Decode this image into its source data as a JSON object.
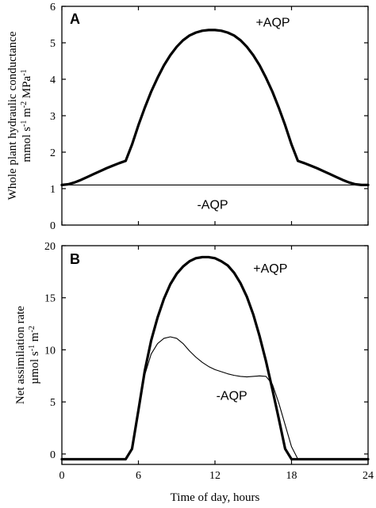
{
  "chart_data": [
    {
      "type": "line",
      "panel_label": "A",
      "ylabel_line1": "Whole plant hydraulic conductance",
      "ylabel_line2": "mmol s",
      "ylabel_line2_sup1": "-1",
      "ylabel_line2_mid": " m",
      "ylabel_line2_sup2": "-2",
      "ylabel_line2_mid2": " MPa",
      "ylabel_line2_sup3": "-1",
      "xlim": [
        0,
        24
      ],
      "ylim": [
        0,
        6
      ],
      "xticks": [
        0,
        6,
        12,
        18,
        24
      ],
      "yticks": [
        0,
        1,
        2,
        3,
        4,
        5,
        6
      ],
      "series": [
        {
          "name": "+AQP",
          "style": "thick",
          "x": [
            0,
            0.5,
            1,
            1.5,
            2,
            2.5,
            3,
            3.5,
            4,
            4.5,
            5,
            5.5,
            6,
            6.5,
            7,
            7.5,
            8,
            8.5,
            9,
            9.5,
            10,
            10.5,
            11,
            11.5,
            12,
            12.5,
            13,
            13.5,
            14,
            14.5,
            15,
            15.5,
            16,
            16.5,
            17,
            17.5,
            18,
            18.5,
            19,
            19.5,
            20,
            20.5,
            21,
            21.5,
            22,
            22.5,
            23,
            23.5,
            24
          ],
          "y": [
            1.1,
            1.12,
            1.17,
            1.24,
            1.32,
            1.4,
            1.48,
            1.56,
            1.63,
            1.7,
            1.76,
            2.21,
            2.74,
            3.22,
            3.66,
            4.04,
            4.38,
            4.66,
            4.89,
            5.07,
            5.2,
            5.28,
            5.33,
            5.35,
            5.35,
            5.33,
            5.28,
            5.2,
            5.07,
            4.89,
            4.66,
            4.38,
            4.04,
            3.66,
            3.22,
            2.74,
            2.21,
            1.76,
            1.7,
            1.63,
            1.56,
            1.48,
            1.4,
            1.32,
            1.24,
            1.17,
            1.12,
            1.1,
            1.1
          ]
        },
        {
          "name": "-AQP",
          "style": "thin",
          "x": [
            0,
            24
          ],
          "y": [
            1.1,
            1.1
          ]
        }
      ],
      "annotations": [
        {
          "text": "+AQP",
          "x": 15.2,
          "y": 5.45
        },
        {
          "text": "-AQP",
          "x": 10.6,
          "y": 0.45
        }
      ]
    },
    {
      "type": "line",
      "panel_label": "B",
      "ylabel_line1": "Net assimilation rate",
      "ylabel_line2": "µmol s",
      "ylabel_line2_sup1": "-1",
      "ylabel_line2_mid": " m",
      "ylabel_line2_sup2": "-2",
      "xlabel": "Time of day, hours",
      "xlim": [
        0,
        24
      ],
      "ylim": [
        -1,
        20
      ],
      "xticks": [
        0,
        6,
        12,
        18,
        24
      ],
      "xtick_labels": [
        "0",
        "6",
        "12",
        "18",
        "24"
      ],
      "yticks": [
        0,
        5,
        10,
        15,
        20
      ],
      "series": [
        {
          "name": "+AQP",
          "style": "thick",
          "x": [
            0,
            5,
            5.5,
            6,
            6.5,
            7,
            7.5,
            8,
            8.5,
            9,
            9.5,
            10,
            10.5,
            11,
            11.5,
            12,
            12.5,
            13,
            13.5,
            14,
            14.5,
            15,
            15.5,
            16,
            16.5,
            17,
            17.5,
            18,
            18.5,
            19,
            24
          ],
          "y": [
            -0.5,
            -0.5,
            0.5,
            4.2,
            8.0,
            10.9,
            13.1,
            14.9,
            16.3,
            17.3,
            18.0,
            18.5,
            18.8,
            18.9,
            18.9,
            18.8,
            18.5,
            18.1,
            17.4,
            16.4,
            15.1,
            13.4,
            11.3,
            8.9,
            6.2,
            3.4,
            0.5,
            -0.5,
            -0.5,
            -0.5,
            -0.5
          ]
        },
        {
          "name": "-AQP",
          "style": "thin",
          "x": [
            0,
            5,
            5.5,
            6,
            6.5,
            7,
            7.5,
            8,
            8.5,
            9,
            9.5,
            10,
            10.5,
            11,
            11.5,
            12,
            12.5,
            13,
            13.5,
            14,
            14.5,
            15,
            15.5,
            16,
            16.5,
            17,
            17.5,
            18,
            18.5,
            19,
            24
          ],
          "y": [
            -0.5,
            -0.5,
            0.5,
            4.2,
            7.6,
            9.6,
            10.6,
            11.1,
            11.25,
            11.1,
            10.6,
            9.9,
            9.3,
            8.8,
            8.4,
            8.1,
            7.9,
            7.7,
            7.55,
            7.45,
            7.4,
            7.45,
            7.5,
            7.45,
            6.7,
            4.9,
            2.8,
            0.7,
            -0.5,
            -0.5,
            -0.5
          ]
        }
      ],
      "annotations": [
        {
          "text": "+AQP",
          "x": 15.0,
          "y": 17.4
        },
        {
          "text": "-AQP",
          "x": 12.1,
          "y": 5.2
        }
      ]
    }
  ]
}
